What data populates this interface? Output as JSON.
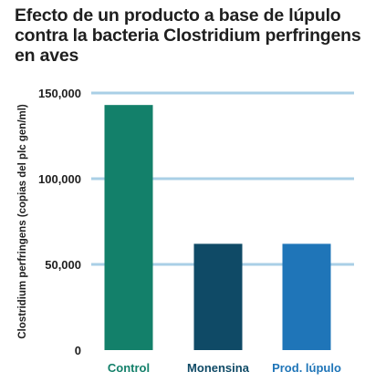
{
  "chart_data": {
    "type": "bar",
    "title": "Efecto de un producto a base de lúpulo contra la bacteria Clostridium perfringens en aves",
    "ylabel": "Clostridium perfringens (copias del plc gen/ml)",
    "xlabel": "",
    "categories": [
      "Control",
      "Monensina",
      "Prod. lúpulo"
    ],
    "values": [
      143000,
      62000,
      62000
    ],
    "ylim": [
      0,
      150000
    ],
    "yticks": [
      0,
      50000,
      100000,
      150000
    ],
    "ytick_labels": [
      "0",
      "50,000",
      "100,000",
      "150,000"
    ],
    "grid": true,
    "colors": {
      "bars": [
        "#13806a",
        "#0f4a66",
        "#1f75b8"
      ],
      "category_labels": [
        "#13806a",
        "#0f4a66",
        "#1f75b8"
      ],
      "grid": "#a9cfe6",
      "text": "#1f1f1f"
    }
  }
}
